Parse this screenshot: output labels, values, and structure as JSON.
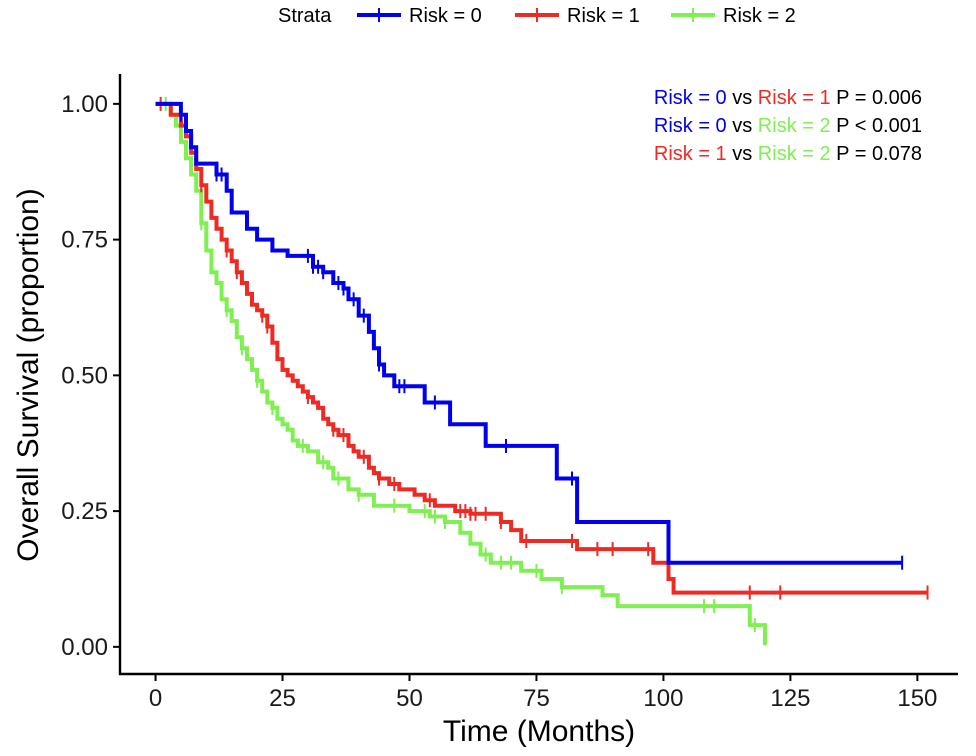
{
  "chart_data": {
    "type": "line",
    "subtype": "kaplan-meier step curves with censor marks",
    "xlabel": "Time (Months)",
    "ylabel": "Overall Survival (proportion)",
    "xlim": [
      -7,
      158
    ],
    "ylim": [
      -0.05,
      1.055
    ],
    "x_ticks": [
      0,
      25,
      50,
      75,
      100,
      125,
      150
    ],
    "x_tick_labels": [
      "0",
      "25",
      "50",
      "75",
      "100",
      "125",
      "150"
    ],
    "y_ticks": [
      0,
      0.25,
      0.5,
      0.75,
      1.0
    ],
    "y_tick_labels": [
      "0.00",
      "0.25",
      "0.50",
      "0.75",
      "1.00"
    ],
    "grid": false,
    "legend": {
      "title": "Strata",
      "position": "top",
      "entries": [
        "Risk = 0",
        "Risk = 1",
        "Risk = 2"
      ]
    },
    "series": [
      {
        "name": "Risk = 0",
        "color": "#0000ee",
        "steps": [
          [
            0,
            1.0
          ],
          [
            5,
            0.98
          ],
          [
            6,
            0.95
          ],
          [
            7,
            0.92
          ],
          [
            8,
            0.89
          ],
          [
            12,
            0.87
          ],
          [
            14,
            0.84
          ],
          [
            15,
            0.8
          ],
          [
            18,
            0.77
          ],
          [
            20,
            0.75
          ],
          [
            23,
            0.73
          ],
          [
            26,
            0.72
          ],
          [
            31,
            0.7
          ],
          [
            33,
            0.69
          ],
          [
            35,
            0.67
          ],
          [
            37,
            0.66
          ],
          [
            38,
            0.64
          ],
          [
            40,
            0.61
          ],
          [
            42,
            0.58
          ],
          [
            43,
            0.55
          ],
          [
            44,
            0.52
          ],
          [
            45,
            0.5
          ],
          [
            47,
            0.48
          ],
          [
            53,
            0.45
          ],
          [
            58,
            0.41
          ],
          [
            65,
            0.37
          ],
          [
            79,
            0.31
          ],
          [
            83,
            0.23
          ],
          [
            101,
            0.155
          ],
          [
            147,
            0.155
          ]
        ],
        "censor_x": [
          5,
          12,
          13,
          30,
          31,
          32,
          33,
          36,
          37,
          39,
          41,
          44,
          48,
          49,
          55,
          69,
          82,
          147
        ]
      },
      {
        "name": "Risk = 1",
        "color": "#ee2a24",
        "steps": [
          [
            0,
            1.0
          ],
          [
            3,
            0.98
          ],
          [
            5,
            0.96
          ],
          [
            6,
            0.94
          ],
          [
            7,
            0.91
          ],
          [
            8,
            0.88
          ],
          [
            9,
            0.85
          ],
          [
            10,
            0.82
          ],
          [
            11,
            0.79
          ],
          [
            12,
            0.77
          ],
          [
            13,
            0.75
          ],
          [
            14,
            0.73
          ],
          [
            15,
            0.71
          ],
          [
            16,
            0.69
          ],
          [
            17,
            0.67
          ],
          [
            18,
            0.65
          ],
          [
            19,
            0.63
          ],
          [
            20,
            0.62
          ],
          [
            21,
            0.61
          ],
          [
            22,
            0.59
          ],
          [
            23,
            0.56
          ],
          [
            24,
            0.53
          ],
          [
            25,
            0.51
          ],
          [
            26,
            0.5
          ],
          [
            27,
            0.49
          ],
          [
            28,
            0.48
          ],
          [
            29,
            0.47
          ],
          [
            30,
            0.46
          ],
          [
            31,
            0.45
          ],
          [
            32,
            0.44
          ],
          [
            33,
            0.42
          ],
          [
            34,
            0.41
          ],
          [
            35,
            0.4
          ],
          [
            36,
            0.39
          ],
          [
            38,
            0.37
          ],
          [
            39,
            0.36
          ],
          [
            40,
            0.35
          ],
          [
            42,
            0.33
          ],
          [
            43,
            0.32
          ],
          [
            44,
            0.31
          ],
          [
            46,
            0.3
          ],
          [
            48,
            0.29
          ],
          [
            51,
            0.28
          ],
          [
            53,
            0.27
          ],
          [
            55,
            0.26
          ],
          [
            59,
            0.25
          ],
          [
            62,
            0.245
          ],
          [
            68,
            0.23
          ],
          [
            70,
            0.215
          ],
          [
            72,
            0.195
          ],
          [
            83,
            0.18
          ],
          [
            98,
            0.155
          ],
          [
            101,
            0.125
          ],
          [
            102,
            0.1
          ],
          [
            152,
            0.1
          ]
        ],
        "censor_x": [
          1,
          9,
          14,
          16,
          21,
          22,
          30,
          35,
          37,
          41,
          44,
          47,
          54,
          60,
          61,
          62,
          63,
          65,
          68,
          73,
          82,
          87,
          90,
          97,
          117,
          123,
          152
        ]
      },
      {
        "name": "Risk = 2",
        "color": "#7fef52",
        "steps": [
          [
            0,
            1.0
          ],
          [
            3,
            0.98
          ],
          [
            4,
            0.96
          ],
          [
            5,
            0.93
          ],
          [
            6,
            0.9
          ],
          [
            7,
            0.87
          ],
          [
            8,
            0.84
          ],
          [
            9,
            0.78
          ],
          [
            10,
            0.73
          ],
          [
            11,
            0.69
          ],
          [
            12,
            0.67
          ],
          [
            13,
            0.64
          ],
          [
            14,
            0.62
          ],
          [
            15,
            0.6
          ],
          [
            16,
            0.57
          ],
          [
            17,
            0.55
          ],
          [
            18,
            0.53
          ],
          [
            19,
            0.51
          ],
          [
            20,
            0.49
          ],
          [
            21,
            0.47
          ],
          [
            22,
            0.45
          ],
          [
            23,
            0.44
          ],
          [
            24,
            0.42
          ],
          [
            25,
            0.41
          ],
          [
            26,
            0.4
          ],
          [
            27,
            0.38
          ],
          [
            28,
            0.37
          ],
          [
            30,
            0.36
          ],
          [
            32,
            0.34
          ],
          [
            34,
            0.33
          ],
          [
            35,
            0.31
          ],
          [
            38,
            0.29
          ],
          [
            40,
            0.28
          ],
          [
            43,
            0.26
          ],
          [
            50,
            0.25
          ],
          [
            54,
            0.24
          ],
          [
            57,
            0.23
          ],
          [
            60,
            0.21
          ],
          [
            62,
            0.19
          ],
          [
            64,
            0.17
          ],
          [
            66,
            0.155
          ],
          [
            72,
            0.14
          ],
          [
            76,
            0.125
          ],
          [
            80,
            0.11
          ],
          [
            88,
            0.095
          ],
          [
            91,
            0.075
          ],
          [
            117,
            0.04
          ],
          [
            120,
            0.003
          ]
        ],
        "censor_x": [
          2,
          9,
          14,
          17,
          20,
          23,
          29,
          33,
          36,
          40,
          47,
          53,
          55,
          57,
          65,
          68,
          70,
          75,
          80,
          108,
          110,
          118
        ]
      }
    ],
    "annotations": [
      {
        "parts": [
          {
            "text": "Risk = 0",
            "color": "#0000ee"
          },
          {
            "text": "vs",
            "color": "#000000"
          },
          {
            "text": "Risk = 1",
            "color": "#ee2a24"
          },
          {
            "text": "P = 0.006",
            "color": "#000000"
          }
        ]
      },
      {
        "parts": [
          {
            "text": "Risk = 0",
            "color": "#0000ee"
          },
          {
            "text": "vs",
            "color": "#000000"
          },
          {
            "text": "Risk = 2",
            "color": "#7fef52"
          },
          {
            "text": "P < 0.001",
            "color": "#000000"
          }
        ]
      },
      {
        "parts": [
          {
            "text": "Risk = 1",
            "color": "#ee2a24"
          },
          {
            "text": "vs",
            "color": "#000000"
          },
          {
            "text": "Risk = 2",
            "color": "#7fef52"
          },
          {
            "text": "P = 0.078",
            "color": "#000000"
          }
        ]
      }
    ]
  }
}
